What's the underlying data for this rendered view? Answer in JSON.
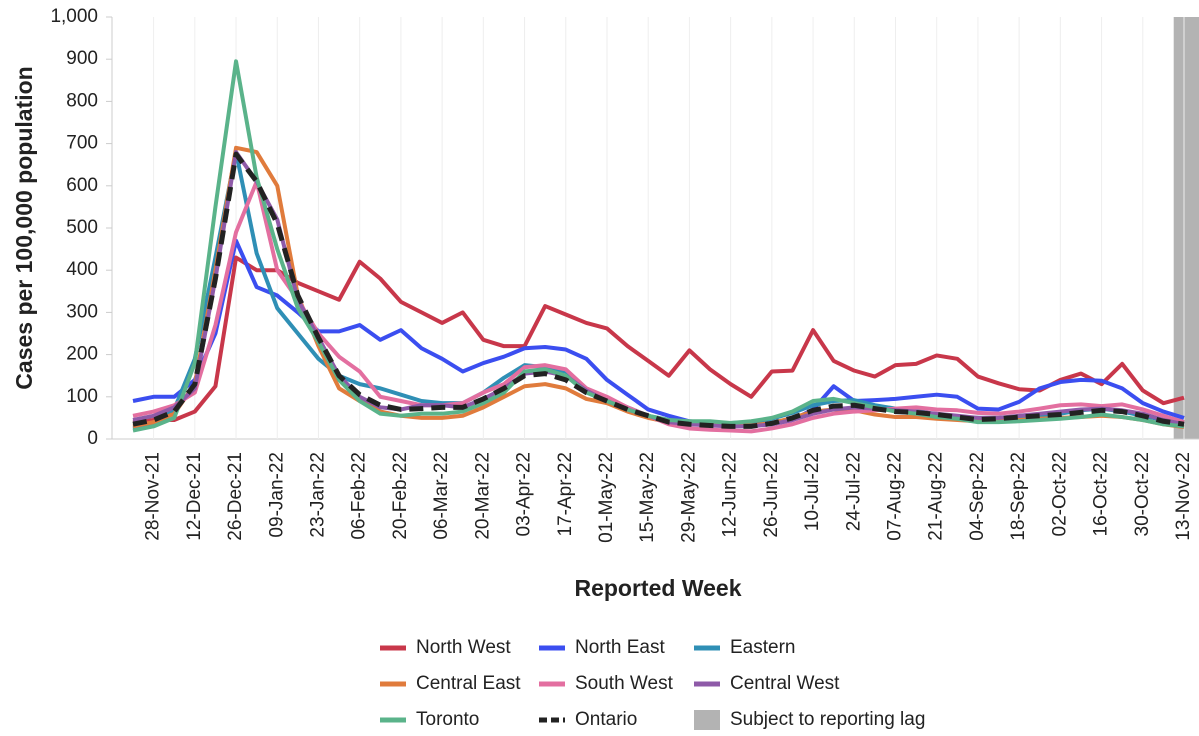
{
  "chart_data": {
    "type": "line",
    "x_label": "Reported Week",
    "y_label": "Cases per 100,000 population",
    "categories": [
      null,
      "28-Nov-21",
      null,
      "12-Dec-21",
      null,
      "26-Dec-21",
      null,
      "09-Jan-22",
      null,
      "23-Jan-22",
      null,
      "06-Feb-22",
      null,
      "20-Feb-22",
      null,
      "06-Mar-22",
      null,
      "20-Mar-22",
      null,
      "03-Apr-22",
      null,
      "17-Apr-22",
      null,
      "01-May-22",
      null,
      "15-May-22",
      null,
      "29-May-22",
      null,
      "12-Jun-22",
      null,
      "26-Jun-22",
      null,
      "10-Jul-22",
      null,
      "24-Jul-22",
      null,
      "07-Aug-22",
      null,
      "21-Aug-22",
      null,
      "04-Sep-22",
      null,
      "18-Sep-22",
      null,
      "02-Oct-22",
      null,
      "16-Oct-22",
      null,
      "30-Oct-22",
      null,
      "13-Nov-22"
    ],
    "ylim": [
      0,
      1000
    ],
    "yticks": [
      0,
      100,
      200,
      300,
      400,
      500,
      600,
      700,
      800,
      900,
      {
        "value": 1000,
        "label": "1,000"
      }
    ],
    "lag_label": "Subject to reporting lag",
    "lag_color": "#b3b3b3",
    "series": [
      {
        "name": "North West",
        "color": "#c8374a",
        "values": [
          40,
          45,
          45,
          65,
          125,
          430,
          400,
          400,
          370,
          350,
          330,
          420,
          380,
          325,
          300,
          275,
          300,
          235,
          220,
          220,
          315,
          295,
          275,
          262,
          220,
          185,
          150,
          210,
          165,
          130,
          100,
          160,
          162,
          258,
          185,
          162,
          148,
          175,
          178,
          198,
          190,
          148,
          132,
          118,
          115,
          140,
          155,
          130,
          178,
          115,
          85,
          98
        ]
      },
      {
        "name": "North East",
        "color": "#3b4ef0",
        "values": [
          90,
          100,
          100,
          140,
          250,
          470,
          360,
          340,
          300,
          255,
          255,
          270,
          235,
          258,
          215,
          190,
          160,
          180,
          195,
          215,
          218,
          212,
          190,
          140,
          105,
          70,
          55,
          42,
          38,
          35,
          32,
          35,
          45,
          70,
          125,
          90,
          92,
          95,
          100,
          105,
          100,
          72,
          70,
          88,
          120,
          135,
          140,
          138,
          120,
          85,
          65,
          50
        ]
      },
      {
        "name": "Eastern",
        "color": "#2f8fb5",
        "values": [
          25,
          35,
          70,
          190,
          430,
          680,
          440,
          310,
          250,
          190,
          150,
          130,
          120,
          105,
          90,
          85,
          85,
          110,
          145,
          175,
          170,
          160,
          120,
          95,
          75,
          55,
          45,
          40,
          38,
          38,
          40,
          48,
          62,
          80,
          90,
          92,
          80,
          72,
          68,
          58,
          52,
          50,
          50,
          52,
          55,
          60,
          68,
          72,
          65,
          55,
          45,
          40
        ]
      },
      {
        "name": "Central East",
        "color": "#e07b3c",
        "values": [
          30,
          40,
          60,
          130,
          400,
          690,
          680,
          600,
          340,
          220,
          120,
          90,
          65,
          55,
          50,
          50,
          55,
          75,
          100,
          125,
          130,
          120,
          95,
          85,
          65,
          50,
          40,
          35,
          35,
          32,
          32,
          38,
          50,
          65,
          70,
          68,
          58,
          52,
          52,
          48,
          45,
          42,
          42,
          45,
          48,
          50,
          52,
          55,
          52,
          45,
          35,
          28
        ]
      },
      {
        "name": "South West",
        "color": "#e36fa0",
        "values": [
          55,
          65,
          80,
          110,
          270,
          490,
          610,
          400,
          330,
          250,
          195,
          160,
          100,
          90,
          80,
          80,
          85,
          110,
          130,
          170,
          175,
          165,
          120,
          100,
          75,
          55,
          35,
          25,
          22,
          20,
          18,
          25,
          35,
          50,
          60,
          65,
          68,
          72,
          75,
          70,
          68,
          62,
          60,
          65,
          72,
          80,
          82,
          78,
          82,
          70,
          55,
          40
        ]
      },
      {
        "name": "Central West",
        "color": "#8e5aa8",
        "values": [
          45,
          55,
          75,
          120,
          380,
          680,
          610,
          520,
          330,
          240,
          150,
          100,
          75,
          70,
          80,
          80,
          75,
          95,
          120,
          155,
          160,
          150,
          115,
          90,
          70,
          55,
          40,
          35,
          32,
          30,
          30,
          35,
          45,
          60,
          70,
          75,
          72,
          68,
          65,
          60,
          55,
          50,
          50,
          55,
          60,
          65,
          70,
          72,
          68,
          60,
          45,
          35
        ]
      },
      {
        "name": "Toronto",
        "color": "#5ab38a",
        "values": [
          20,
          30,
          50,
          180,
          550,
          895,
          620,
          450,
          310,
          230,
          140,
          90,
          60,
          55,
          60,
          60,
          65,
          85,
          110,
          160,
          165,
          150,
          110,
          90,
          70,
          55,
          45,
          42,
          42,
          38,
          42,
          50,
          65,
          90,
          95,
          85,
          75,
          65,
          60,
          52,
          48,
          40,
          40,
          42,
          45,
          48,
          52,
          58,
          52,
          45,
          35,
          30
        ]
      },
      {
        "name": "Ontario",
        "color": "#222222",
        "dashed": true,
        "values": [
          35,
          45,
          65,
          130,
          380,
          675,
          610,
          510,
          340,
          240,
          150,
          105,
          80,
          70,
          72,
          75,
          75,
          95,
          120,
          150,
          155,
          140,
          110,
          90,
          70,
          55,
          40,
          35,
          32,
          30,
          30,
          37,
          50,
          68,
          78,
          80,
          72,
          65,
          63,
          58,
          52,
          46,
          48,
          52,
          55,
          58,
          63,
          68,
          65,
          55,
          42,
          35
        ]
      }
    ]
  }
}
